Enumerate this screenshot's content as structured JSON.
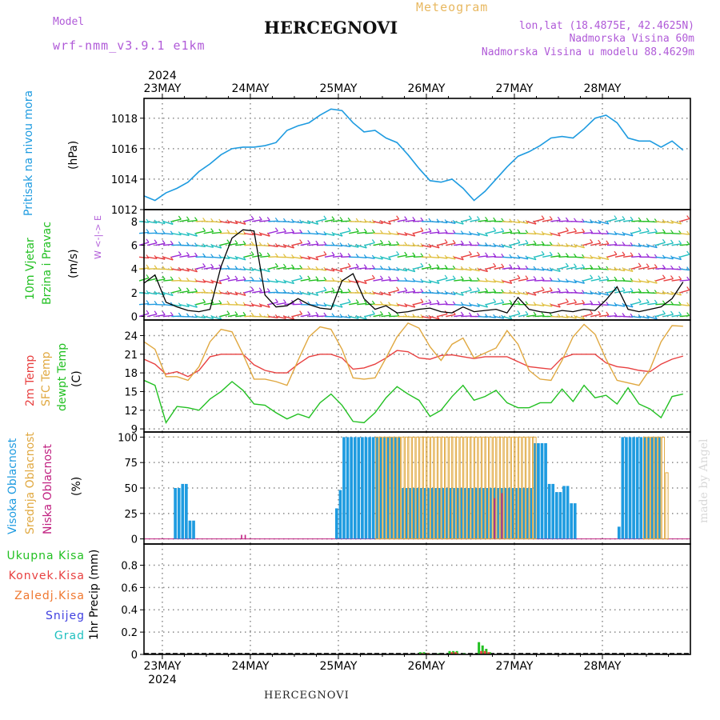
{
  "header": {
    "model_label": "Model",
    "model_name": "wrf-nmm_v3.9.1 e1km",
    "station": "HERCEGNOVI",
    "meteogram_label": "Meteogram",
    "lonlat": "lon,lat (18.4875E, 42.4625N)",
    "altitude": "Nadmorska Visina 60m",
    "model_altitude": "Nadmorska Visina u modelu 88.4629m"
  },
  "footer": {
    "station": "HERCEGNOVI",
    "credit": "made by Angel"
  },
  "colors": {
    "pressure": "#1e9be0",
    "temp2m": "#e84040",
    "sfc": "#e0a840",
    "dewpt": "#22c022",
    "high_cloud": "#1e9be0",
    "mid_cloud": "#e0a840",
    "low_cloud": "#c02080",
    "total_precip": "#22c022",
    "conv_precip": "#e84040",
    "frz_precip": "#f07830",
    "snow": "#4040e0",
    "hail": "#20c0c0",
    "wind_speed": "#000000"
  },
  "chart_data": [
    {
      "type": "line",
      "panel": "pressure",
      "ylabel": [
        "Pritisak na nivou mora",
        "(hPa)"
      ],
      "ylim": [
        1012,
        1019.3
      ],
      "yticks": [
        1012,
        1014,
        1016,
        1018
      ],
      "dates": [
        "23MAY",
        "24MAY",
        "25MAY",
        "26MAY",
        "27MAY",
        "28MAY"
      ],
      "year": "2024",
      "series": [
        {
          "x": [
            0,
            3,
            6,
            9,
            12,
            15,
            18,
            21,
            24,
            27,
            30,
            33,
            36,
            39,
            42,
            45,
            48,
            51,
            54,
            57,
            60,
            63,
            66,
            69,
            72,
            75,
            78,
            81,
            84,
            87,
            90,
            93,
            96,
            99,
            102,
            105,
            108,
            111,
            114,
            117,
            120,
            123,
            126,
            129,
            132,
            135,
            138,
            141,
            144,
            147
          ],
          "values": [
            1012.9,
            1012.6,
            1013.1,
            1013.4,
            1013.8,
            1014.5,
            1015.0,
            1015.6,
            1016.0,
            1016.1,
            1016.1,
            1016.2,
            1016.4,
            1017.2,
            1017.5,
            1017.7,
            1018.2,
            1018.6,
            1018.5,
            1017.7,
            1017.1,
            1017.2,
            1016.7,
            1016.4,
            1015.6,
            1014.7,
            1013.9,
            1013.8,
            1014.0,
            1013.4,
            1012.6,
            1013.2,
            1014.0,
            1014.8,
            1015.5,
            1015.8,
            1016.2,
            1016.7,
            1016.8,
            1016.7,
            1017.3,
            1018.0,
            1018.2,
            1017.7,
            1016.7,
            1016.5,
            1016.5,
            1016.1,
            1016.5,
            1015.9
          ]
        }
      ]
    },
    {
      "type": "line",
      "panel": "wind",
      "ylabel": [
        "10m Vjetar",
        "Brzina i Pravac",
        "(m/s)"
      ],
      "compass": "W <-|-> E",
      "ylim": [
        -0.3,
        9
      ],
      "yticks": [
        0,
        2,
        4,
        6,
        8
      ],
      "series": [
        {
          "name": "speed",
          "x": [
            0,
            3,
            6,
            9,
            12,
            15,
            18,
            21,
            24,
            27,
            30,
            33,
            36,
            39,
            42,
            45,
            48,
            51,
            54,
            57,
            60,
            63,
            66,
            69,
            72,
            75,
            78,
            81,
            84,
            87,
            90,
            93,
            96,
            99,
            102,
            105,
            108,
            111,
            114,
            117,
            120,
            123,
            126,
            129,
            132,
            135,
            138,
            141,
            144,
            147
          ],
          "values": [
            2.8,
            3.5,
            1.2,
            0.8,
            0.5,
            0.4,
            0.6,
            4.2,
            6.6,
            7.3,
            7.2,
            1.8,
            0.8,
            0.9,
            1.5,
            1.0,
            0.7,
            0.6,
            3.0,
            3.6,
            1.5,
            0.6,
            0.9,
            0.3,
            0.4,
            0.6,
            0.7,
            0.4,
            0.3,
            0.8,
            0.4,
            0.5,
            0.6,
            0.3,
            1.6,
            0.6,
            0.4,
            0.3,
            0.5,
            0.4,
            0.6,
            0.5,
            1.4,
            2.5,
            0.6,
            0.4,
            0.6,
            0.8,
            1.5,
            2.9
          ]
        }
      ]
    },
    {
      "type": "line",
      "panel": "temperature",
      "ylabel": [
        "2m Temp",
        "SFC Temp",
        "dewpt Temp",
        "(C)"
      ],
      "ylim": [
        8.5,
        26.5
      ],
      "yticks": [
        9,
        12,
        15,
        18,
        21,
        24
      ],
      "x": [
        0,
        3,
        6,
        9,
        12,
        15,
        18,
        21,
        24,
        27,
        30,
        33,
        36,
        39,
        42,
        45,
        48,
        51,
        54,
        57,
        60,
        63,
        66,
        69,
        72,
        75,
        78,
        81,
        84,
        87,
        90,
        93,
        96,
        99,
        102,
        105,
        108,
        111,
        114,
        117,
        120,
        123,
        126,
        129,
        132,
        135,
        138,
        141,
        144,
        147
      ],
      "series": [
        {
          "name": "2m Temp",
          "values": [
            20.2,
            19.4,
            17.8,
            18.2,
            17.4,
            18.4,
            20.6,
            21.0,
            21.0,
            21.0,
            19.3,
            18.4,
            18.0,
            18.0,
            19.4,
            20.6,
            21.0,
            21.0,
            20.4,
            18.6,
            18.8,
            19.4,
            20.4,
            21.6,
            21.4,
            20.4,
            20.2,
            20.8,
            20.9,
            20.6,
            20.3,
            20.6,
            20.6,
            20.6,
            19.8,
            19.0,
            18.8,
            18.6,
            20.4,
            21.0,
            21.0,
            21.0,
            19.6,
            19.0,
            18.8,
            18.4,
            18.2,
            19.4,
            20.2,
            20.7
          ]
        },
        {
          "name": "SFC Temp",
          "values": [
            23.0,
            21.8,
            17.4,
            17.4,
            16.8,
            19.0,
            23.0,
            25.0,
            24.6,
            21.0,
            17.0,
            17.0,
            16.6,
            16.0,
            20.0,
            23.8,
            25.4,
            25.0,
            21.8,
            17.2,
            17.0,
            17.2,
            20.4,
            23.8,
            26.0,
            25.2,
            22.2,
            20.0,
            22.6,
            23.6,
            20.4,
            21.2,
            22.0,
            24.8,
            22.6,
            18.4,
            17.0,
            16.8,
            20.0,
            23.8,
            25.8,
            24.2,
            20.2,
            16.8,
            16.4,
            16.0,
            18.6,
            23.0,
            25.6,
            25.5
          ]
        },
        {
          "name": "dewpt Temp",
          "values": [
            16.8,
            16.0,
            10.0,
            12.6,
            12.4,
            12.0,
            13.8,
            15.0,
            16.6,
            15.2,
            13.0,
            12.8,
            11.6,
            10.6,
            11.4,
            10.8,
            13.2,
            14.6,
            12.8,
            10.2,
            10.0,
            11.6,
            14.0,
            15.8,
            14.6,
            13.6,
            11.0,
            12.0,
            14.2,
            16.0,
            13.6,
            14.2,
            15.2,
            13.2,
            12.4,
            12.4,
            13.2,
            13.2,
            15.4,
            13.4,
            16.0,
            14.0,
            14.4,
            13.0,
            15.6,
            13.0,
            12.2,
            10.8,
            14.2,
            14.6
          ]
        }
      ]
    },
    {
      "type": "bar",
      "panel": "cloud",
      "ylabel": [
        "Visoka Oblacnost",
        "Srednja Oblacnost",
        "Niska Oblacnost",
        "(%)"
      ],
      "ylim": [
        -5,
        105
      ],
      "yticks": [
        0,
        25,
        50,
        75,
        100
      ],
      "series": [
        {
          "name": "Visoka Oblacnost",
          "segments": [
            {
              "x0": 8,
              "x1": 10,
              "v": 50
            },
            {
              "x0": 10,
              "x1": 12,
              "v": 54
            },
            {
              "x0": 12,
              "x1": 14,
              "v": 18
            },
            {
              "x0": 52,
              "x1": 53,
              "v": 30
            },
            {
              "x0": 53,
              "x1": 54,
              "v": 48
            },
            {
              "x0": 54,
              "x1": 70,
              "v": 100
            },
            {
              "x0": 70,
              "x1": 106,
              "v": 50
            },
            {
              "x0": 106,
              "x1": 110,
              "v": 94
            },
            {
              "x0": 110,
              "x1": 112,
              "v": 54
            },
            {
              "x0": 112,
              "x1": 114,
              "v": 46
            },
            {
              "x0": 114,
              "x1": 116,
              "v": 52
            },
            {
              "x0": 116,
              "x1": 118,
              "v": 35
            },
            {
              "x0": 129,
              "x1": 130,
              "v": 12
            },
            {
              "x0": 130,
              "x1": 141,
              "v": 100
            }
          ]
        },
        {
          "name": "Srednja Oblacnost",
          "segments": [
            {
              "x0": 63,
              "x1": 107,
              "v": 100
            },
            {
              "x0": 136,
              "x1": 142,
              "v": 100
            },
            {
              "x0": 142,
              "x1": 143,
              "v": 65
            }
          ]
        },
        {
          "name": "Niska Oblacnost",
          "segments": [
            {
              "x0": 26,
              "x1": 27,
              "v": 4
            },
            {
              "x0": 27,
              "x1": 28,
              "v": 4
            },
            {
              "x0": 95,
              "x1": 96,
              "v": 40
            },
            {
              "x0": 97,
              "x1": 98,
              "v": 45
            }
          ]
        }
      ]
    },
    {
      "type": "bar",
      "panel": "precipitation",
      "ylabel": [
        "1hr Precip (mm)"
      ],
      "legend": [
        "Ukupna Kisa",
        "Konvek.Kisa",
        "Zaledj.Kisa",
        "Snijeg",
        "Grad"
      ],
      "ylim": [
        0,
        0.99
      ],
      "yticks": [
        0,
        0.2,
        0.4,
        0.6,
        0.8
      ],
      "series": [
        {
          "name": "Ukupna Kisa",
          "values": [
            [
              75,
              0.02
            ],
            [
              76,
              0.02
            ],
            [
              80,
              0.01
            ],
            [
              83,
              0.03
            ],
            [
              84,
              0.03
            ],
            [
              85,
              0.03
            ],
            [
              87,
              0.01
            ],
            [
              91,
              0.11
            ],
            [
              92,
              0.08
            ],
            [
              93,
              0.05
            ],
            [
              94,
              0.02
            ]
          ]
        },
        {
          "name": "Konvek.Kisa",
          "values": [
            [
              75,
              0.01
            ],
            [
              83,
              0.02
            ],
            [
              84,
              0.02
            ],
            [
              91,
              0.03
            ],
            [
              92,
              0.03
            ],
            [
              93,
              0.02
            ]
          ]
        },
        {
          "name": "Zaledj.Kisa",
          "values": [
            [
              76,
              0.01
            ],
            [
              84,
              0.01
            ]
          ]
        }
      ]
    }
  ]
}
